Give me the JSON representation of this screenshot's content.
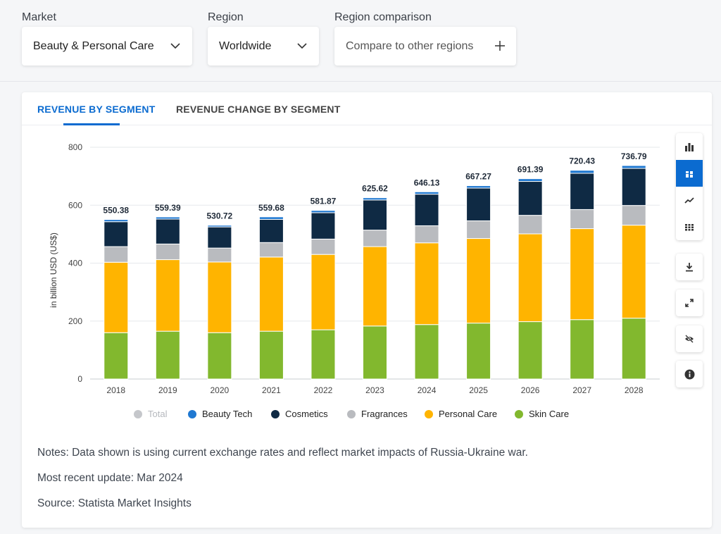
{
  "filters": {
    "market_label": "Market",
    "market_value": "Beauty & Personal Care",
    "region_label": "Region",
    "region_value": "Worldwide",
    "comparison_label": "Region comparison",
    "comparison_placeholder": "Compare to other regions"
  },
  "tabs": [
    {
      "label": "REVENUE BY SEGMENT",
      "active": true
    },
    {
      "label": "REVENUE CHANGE BY SEGMENT",
      "active": false
    }
  ],
  "toolbar": {
    "chart_types": [
      "bar-chart-icon",
      "stacked-bar-icon",
      "line-chart-icon",
      "table-icon"
    ],
    "active_index": 1,
    "actions": [
      "download-icon",
      "expand-icon",
      "hide-icon",
      "info-icon"
    ]
  },
  "colors": {
    "accent": "#0b6bd0",
    "Total": "#c5c7cb",
    "Beauty Tech": "#1f78d1",
    "Cosmetics": "#0f2a44",
    "Fragrances": "#b9bbbf",
    "Personal Care": "#ffb400",
    "Skin Care": "#82b82e"
  },
  "chart_data": {
    "type": "bar",
    "stacked": true,
    "ylabel": "in billion USD (US$)",
    "ylim": [
      0,
      800
    ],
    "yticks": [
      0,
      200,
      400,
      600,
      800
    ],
    "categories": [
      "2018",
      "2019",
      "2020",
      "2021",
      "2022",
      "2023",
      "2024",
      "2025",
      "2026",
      "2027",
      "2028"
    ],
    "totals": [
      "550.38",
      "559.39",
      "530.72",
      "559.68",
      "581.87",
      "625.62",
      "646.13",
      "667.27",
      "691.39",
      "720.43",
      "736.79"
    ],
    "series": [
      {
        "name": "Skin Care",
        "values": [
          160,
          165,
          160,
          165,
          170,
          183,
          188,
          193,
          198,
          205,
          210
        ]
      },
      {
        "name": "Personal Care",
        "values": [
          243,
          247,
          244,
          256,
          260,
          274,
          282,
          292,
          303,
          314,
          321
        ]
      },
      {
        "name": "Fragrances",
        "values": [
          54,
          54,
          48,
          50,
          53,
          57,
          59,
          61,
          64,
          66,
          68
        ]
      },
      {
        "name": "Cosmetics",
        "values": [
          86,
          86,
          73,
          80,
          91,
          104,
          109,
          113,
          117,
          125,
          128
        ]
      },
      {
        "name": "Beauty Tech",
        "values": [
          7.38,
          7.39,
          5.72,
          8.68,
          7.87,
          7.62,
          8.13,
          8.27,
          9.39,
          10.43,
          9.79
        ]
      }
    ],
    "legend": [
      "Total",
      "Beauty Tech",
      "Cosmetics",
      "Fragrances",
      "Personal Care",
      "Skin Care"
    ],
    "legend_inactive": [
      "Total"
    ]
  },
  "notes": {
    "note": "Notes: Data shown is using current exchange rates and reflect market impacts of Russia-Ukraine war.",
    "update": "Most recent update: Mar 2024",
    "source": "Source: Statista Market Insights"
  }
}
